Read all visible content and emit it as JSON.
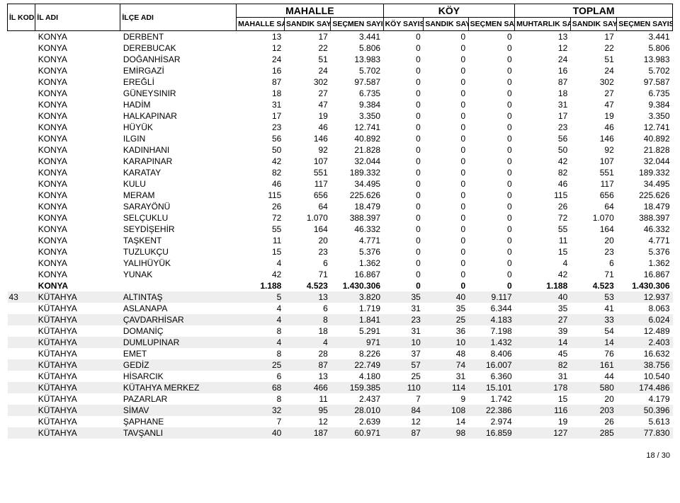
{
  "page_footer": "18 / 30",
  "header": {
    "il_kodu": "İL KODU",
    "il_adi": "İL ADI",
    "ilce_adi": "İLÇE ADI",
    "sect_mahalle": "MAHALLE",
    "sect_koy": "KÖY",
    "sect_toplam": "TOPLAM",
    "sub": {
      "m_sayisi": "MAHALLE SAYISI",
      "sandik": "SANDIK SAYISI",
      "secmen": "SEÇMEN SAYISI",
      "k_sayisi": "KÖY SAYISI",
      "muhtar": "MUHTARLIK SAYISI"
    }
  },
  "col_widths": {
    "ilkodu": 36,
    "iladi": 110,
    "ilceadi": 150,
    "c1": 62,
    "c2": 60,
    "c3": 68,
    "c4": 52,
    "c5": 58,
    "c6": 60,
    "c7": 72,
    "c8": 60,
    "c9": 72
  },
  "rows": [
    {
      "shade": false,
      "kod": "",
      "il": "KONYA",
      "ilce": "DERBENT",
      "v": [
        "13",
        "17",
        "3.441",
        "0",
        "0",
        "0",
        "13",
        "17",
        "3.441"
      ]
    },
    {
      "shade": false,
      "kod": "",
      "il": "KONYA",
      "ilce": "DEREBUCAK",
      "v": [
        "12",
        "22",
        "5.806",
        "0",
        "0",
        "0",
        "12",
        "22",
        "5.806"
      ]
    },
    {
      "shade": false,
      "kod": "",
      "il": "KONYA",
      "ilce": "DOĞANHİSAR",
      "v": [
        "24",
        "51",
        "13.983",
        "0",
        "0",
        "0",
        "24",
        "51",
        "13.983"
      ]
    },
    {
      "shade": false,
      "kod": "",
      "il": "KONYA",
      "ilce": "EMİRGAZİ",
      "v": [
        "16",
        "24",
        "5.702",
        "0",
        "0",
        "0",
        "16",
        "24",
        "5.702"
      ]
    },
    {
      "shade": false,
      "kod": "",
      "il": "KONYA",
      "ilce": "EREĞLİ",
      "v": [
        "87",
        "302",
        "97.587",
        "0",
        "0",
        "0",
        "87",
        "302",
        "97.587"
      ]
    },
    {
      "shade": false,
      "kod": "",
      "il": "KONYA",
      "ilce": "GÜNEYSINIR",
      "v": [
        "18",
        "27",
        "6.735",
        "0",
        "0",
        "0",
        "18",
        "27",
        "6.735"
      ]
    },
    {
      "shade": false,
      "kod": "",
      "il": "KONYA",
      "ilce": "HADİM",
      "v": [
        "31",
        "47",
        "9.384",
        "0",
        "0",
        "0",
        "31",
        "47",
        "9.384"
      ]
    },
    {
      "shade": false,
      "kod": "",
      "il": "KONYA",
      "ilce": "HALKAPINAR",
      "v": [
        "17",
        "19",
        "3.350",
        "0",
        "0",
        "0",
        "17",
        "19",
        "3.350"
      ]
    },
    {
      "shade": false,
      "kod": "",
      "il": "KONYA",
      "ilce": "HÜYÜK",
      "v": [
        "23",
        "46",
        "12.741",
        "0",
        "0",
        "0",
        "23",
        "46",
        "12.741"
      ]
    },
    {
      "shade": false,
      "kod": "",
      "il": "KONYA",
      "ilce": "ILGIN",
      "v": [
        "56",
        "146",
        "40.892",
        "0",
        "0",
        "0",
        "56",
        "146",
        "40.892"
      ]
    },
    {
      "shade": false,
      "kod": "",
      "il": "KONYA",
      "ilce": "KADINHANI",
      "v": [
        "50",
        "92",
        "21.828",
        "0",
        "0",
        "0",
        "50",
        "92",
        "21.828"
      ]
    },
    {
      "shade": false,
      "kod": "",
      "il": "KONYA",
      "ilce": "KARAPINAR",
      "v": [
        "42",
        "107",
        "32.044",
        "0",
        "0",
        "0",
        "42",
        "107",
        "32.044"
      ]
    },
    {
      "shade": false,
      "kod": "",
      "il": "KONYA",
      "ilce": "KARATAY",
      "v": [
        "82",
        "551",
        "189.332",
        "0",
        "0",
        "0",
        "82",
        "551",
        "189.332"
      ]
    },
    {
      "shade": false,
      "kod": "",
      "il": "KONYA",
      "ilce": "KULU",
      "v": [
        "46",
        "117",
        "34.495",
        "0",
        "0",
        "0",
        "46",
        "117",
        "34.495"
      ]
    },
    {
      "shade": false,
      "kod": "",
      "il": "KONYA",
      "ilce": "MERAM",
      "v": [
        "115",
        "656",
        "225.626",
        "0",
        "0",
        "0",
        "115",
        "656",
        "225.626"
      ]
    },
    {
      "shade": false,
      "kod": "",
      "il": "KONYA",
      "ilce": "SARAYÖNÜ",
      "v": [
        "26",
        "64",
        "18.479",
        "0",
        "0",
        "0",
        "26",
        "64",
        "18.479"
      ]
    },
    {
      "shade": false,
      "kod": "",
      "il": "KONYA",
      "ilce": "SELÇUKLU",
      "v": [
        "72",
        "1.070",
        "388.397",
        "0",
        "0",
        "0",
        "72",
        "1.070",
        "388.397"
      ]
    },
    {
      "shade": false,
      "kod": "",
      "il": "KONYA",
      "ilce": "SEYDİŞEHİR",
      "v": [
        "55",
        "164",
        "46.332",
        "0",
        "0",
        "0",
        "55",
        "164",
        "46.332"
      ]
    },
    {
      "shade": false,
      "kod": "",
      "il": "KONYA",
      "ilce": "TAŞKENT",
      "v": [
        "11",
        "20",
        "4.771",
        "0",
        "0",
        "0",
        "11",
        "20",
        "4.771"
      ]
    },
    {
      "shade": false,
      "kod": "",
      "il": "KONYA",
      "ilce": "TUZLUKÇU",
      "v": [
        "15",
        "23",
        "5.376",
        "0",
        "0",
        "0",
        "15",
        "23",
        "5.376"
      ]
    },
    {
      "shade": false,
      "kod": "",
      "il": "KONYA",
      "ilce": "YALIHÜYÜK",
      "v": [
        "4",
        "6",
        "1.362",
        "0",
        "0",
        "0",
        "4",
        "6",
        "1.362"
      ]
    },
    {
      "shade": false,
      "kod": "",
      "il": "KONYA",
      "ilce": "YUNAK",
      "v": [
        "42",
        "71",
        "16.867",
        "0",
        "0",
        "0",
        "42",
        "71",
        "16.867"
      ]
    },
    {
      "shade": false,
      "total": true,
      "kod": "",
      "il": "KONYA",
      "ilce": "",
      "v": [
        "1.188",
        "4.523",
        "1.430.306",
        "0",
        "0",
        "0",
        "1.188",
        "4.523",
        "1.430.306"
      ]
    },
    {
      "shade": true,
      "kod": "43",
      "il": "KÜTAHYA",
      "ilce": "ALTINTAŞ",
      "v": [
        "5",
        "13",
        "3.820",
        "35",
        "40",
        "9.117",
        "40",
        "53",
        "12.937"
      ]
    },
    {
      "shade": false,
      "kod": "",
      "il": "KÜTAHYA",
      "ilce": "ASLANAPA",
      "v": [
        "4",
        "6",
        "1.719",
        "31",
        "35",
        "6.344",
        "35",
        "41",
        "8.063"
      ]
    },
    {
      "shade": true,
      "kod": "",
      "il": "KÜTAHYA",
      "ilce": "ÇAVDARHİSAR",
      "v": [
        "4",
        "8",
        "1.841",
        "23",
        "25",
        "4.183",
        "27",
        "33",
        "6.024"
      ]
    },
    {
      "shade": false,
      "kod": "",
      "il": "KÜTAHYA",
      "ilce": "DOMANİÇ",
      "v": [
        "8",
        "18",
        "5.291",
        "31",
        "36",
        "7.198",
        "39",
        "54",
        "12.489"
      ]
    },
    {
      "shade": true,
      "kod": "",
      "il": "KÜTAHYA",
      "ilce": "DUMLUPINAR",
      "v": [
        "4",
        "4",
        "971",
        "10",
        "10",
        "1.432",
        "14",
        "14",
        "2.403"
      ]
    },
    {
      "shade": false,
      "kod": "",
      "il": "KÜTAHYA",
      "ilce": "EMET",
      "v": [
        "8",
        "28",
        "8.226",
        "37",
        "48",
        "8.406",
        "45",
        "76",
        "16.632"
      ]
    },
    {
      "shade": true,
      "kod": "",
      "il": "KÜTAHYA",
      "ilce": "GEDİZ",
      "v": [
        "25",
        "87",
        "22.749",
        "57",
        "74",
        "16.007",
        "82",
        "161",
        "38.756"
      ]
    },
    {
      "shade": false,
      "kod": "",
      "il": "KÜTAHYA",
      "ilce": "HİSARCIK",
      "v": [
        "6",
        "13",
        "4.180",
        "25",
        "31",
        "6.360",
        "31",
        "44",
        "10.540"
      ]
    },
    {
      "shade": true,
      "kod": "",
      "il": "KÜTAHYA",
      "ilce": "KÜTAHYA MERKEZ",
      "v": [
        "68",
        "466",
        "159.385",
        "110",
        "114",
        "15.101",
        "178",
        "580",
        "174.486"
      ]
    },
    {
      "shade": false,
      "kod": "",
      "il": "KÜTAHYA",
      "ilce": "PAZARLAR",
      "v": [
        "8",
        "11",
        "2.437",
        "7",
        "9",
        "1.742",
        "15",
        "20",
        "4.179"
      ]
    },
    {
      "shade": true,
      "kod": "",
      "il": "KÜTAHYA",
      "ilce": "SİMAV",
      "v": [
        "32",
        "95",
        "28.010",
        "84",
        "108",
        "22.386",
        "116",
        "203",
        "50.396"
      ]
    },
    {
      "shade": false,
      "kod": "",
      "il": "KÜTAHYA",
      "ilce": "ŞAPHANE",
      "v": [
        "7",
        "12",
        "2.639",
        "12",
        "14",
        "2.974",
        "19",
        "26",
        "5.613"
      ]
    },
    {
      "shade": true,
      "kod": "",
      "il": "KÜTAHYA",
      "ilce": "TAVŞANLI",
      "v": [
        "40",
        "187",
        "60.971",
        "87",
        "98",
        "16.859",
        "127",
        "285",
        "77.830"
      ]
    }
  ]
}
